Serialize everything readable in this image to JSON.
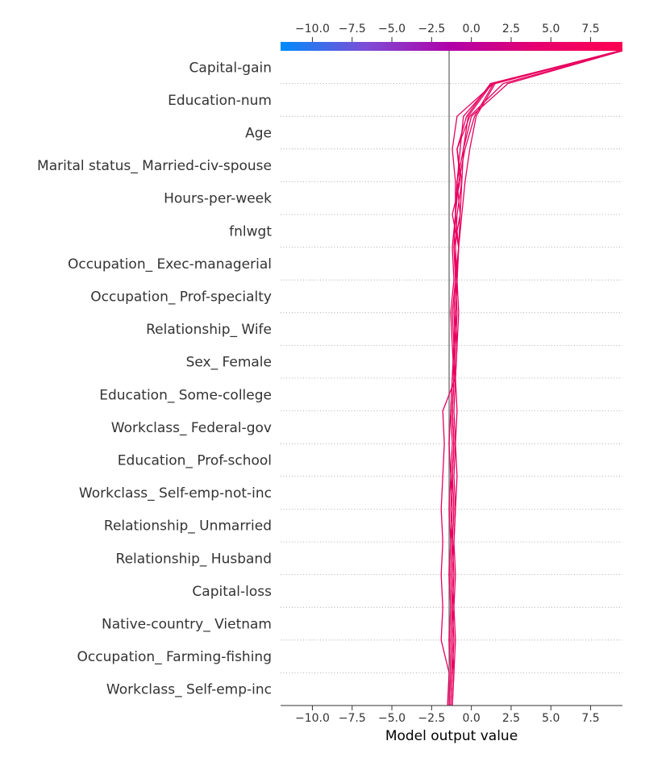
{
  "chart_data": {
    "type": "line",
    "xlabel": "Model output value",
    "xlim": [
      -12,
      9.5
    ],
    "xticks": [
      -10,
      -7.5,
      -5,
      -2.5,
      0,
      2.5,
      5,
      7.5
    ],
    "xtick_labels": [
      "−10.0",
      "−7.5",
      "−5.0",
      "−2.5",
      "0.0",
      "2.5",
      "5.0",
      "7.5"
    ],
    "base_value": -1.4,
    "colorbar": {
      "min": -12,
      "max": 9.5,
      "colors": [
        "#008bfb",
        "#7d4dd6",
        "#b100a8",
        "#e6006e",
        "#ff0051"
      ]
    },
    "features": [
      "Capital-gain",
      "Education-num",
      "Age",
      "Marital status_ Married-civ-spouse",
      "Hours-per-week",
      "fnlwgt",
      "Occupation_ Exec-managerial",
      "Occupation_ Prof-specialty",
      "Relationship_ Wife",
      "Sex_ Female",
      "Education_ Some-college",
      "Workclass_ Federal-gov",
      "Education_ Prof-school",
      "Workclass_ Self-emp-not-inc",
      "Relationship_ Unmarried",
      "Relationship_ Husband",
      "Capital-loss",
      "Native-country_ Vietnam",
      "Occupation_ Farming-fishing",
      "Workclass_ Self-emp-inc"
    ],
    "series": [
      {
        "values": [
          -1.3,
          -1.2,
          -1.3,
          -1.2,
          -1.3,
          -1.2,
          -1.1,
          -1.2,
          -1.1,
          -1.2,
          -1.1,
          -1.0,
          -1.1,
          -1.0,
          -1.1,
          -1.0,
          -0.9,
          -0.7,
          -0.5,
          1.3,
          9.5
        ]
      },
      {
        "values": [
          -1.2,
          -1.1,
          -1.2,
          -1.1,
          -1.2,
          -1.1,
          -1.0,
          -1.1,
          -1.0,
          -1.1,
          -1.0,
          -0.9,
          -1.0,
          -0.9,
          -0.8,
          -0.6,
          -0.4,
          -0.1,
          0.3,
          1.5,
          9.4
        ]
      },
      {
        "values": [
          -1.4,
          -1.3,
          -1.4,
          -1.3,
          -1.4,
          -1.3,
          -1.2,
          -1.3,
          -1.2,
          -1.3,
          -1.2,
          -1.1,
          -1.2,
          -1.0,
          -0.8,
          -1.2,
          -0.7,
          -0.9,
          -0.1,
          2.0,
          9.5
        ]
      },
      {
        "values": [
          -1.2,
          -1.1,
          -1.0,
          -1.1,
          -1.0,
          -1.1,
          -1.0,
          -0.9,
          -1.0,
          -0.9,
          -1.0,
          -0.9,
          -0.8,
          -0.9,
          -1.1,
          -0.7,
          -0.9,
          -0.5,
          -0.2,
          1.3,
          9.3
        ]
      },
      {
        "values": [
          -1.3,
          -1.2,
          -1.3,
          -1.2,
          -1.3,
          -1.2,
          -1.3,
          -1.2,
          -1.1,
          -1.2,
          -1.1,
          -1.0,
          -0.9,
          -1.0,
          -0.8,
          -1.0,
          -0.8,
          -0.4,
          0.2,
          1.4,
          9.5
        ]
      },
      {
        "values": [
          -1.5,
          -1.4,
          -1.9,
          -1.8,
          -1.9,
          -1.8,
          -1.9,
          -1.8,
          -1.7,
          -1.8,
          -1.0,
          -1.1,
          -1.0,
          -0.9,
          -1.0,
          -0.9,
          -0.6,
          -0.9,
          -0.3,
          1.2,
          9.4
        ]
      },
      {
        "values": [
          -1.3,
          -1.2,
          -1.1,
          -1.2,
          -1.1,
          -1.2,
          -1.1,
          -1.2,
          -1.1,
          -1.2,
          -1.1,
          -1.2,
          -1.3,
          -1.1,
          -1.2,
          -1.0,
          -1.0,
          -1.2,
          -0.9,
          1.4,
          9.5
        ]
      },
      {
        "values": [
          -1.4,
          -1.3,
          -1.4,
          -1.3,
          -1.4,
          -1.3,
          -1.4,
          -1.3,
          -1.4,
          -1.3,
          -1.2,
          -1.1,
          -1.0,
          -0.9,
          -0.8,
          -0.7,
          -0.6,
          -0.5,
          0.0,
          2.3,
          9.5
        ]
      }
    ]
  }
}
